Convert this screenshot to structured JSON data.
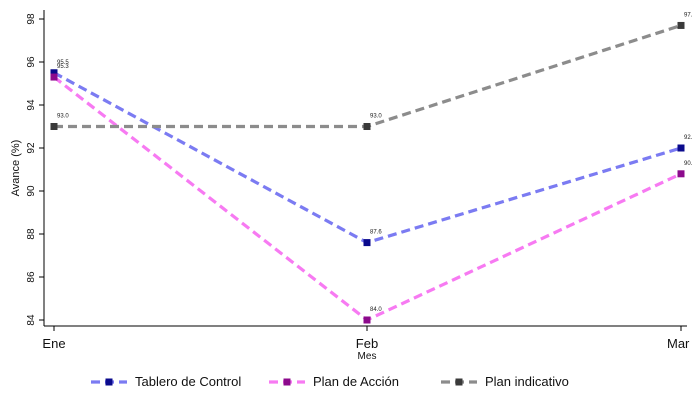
{
  "chart_data": {
    "type": "line",
    "title": "",
    "xlabel": "Mes",
    "ylabel": "Avance (%)",
    "categories": [
      "Ene",
      "Feb",
      "Mar"
    ],
    "ylim": [
      83.5,
      99
    ],
    "yticks": [
      84,
      86,
      88,
      90,
      92,
      94,
      96,
      98
    ],
    "grid": false,
    "legend": "bottom",
    "series": [
      {
        "name": "Tablero de Control",
        "values": [
          95.5,
          87.6,
          92.0
        ],
        "labels": [
          "95.5",
          "87.6",
          "92.0"
        ],
        "color": "#7b7bf2",
        "marker_color": "#0a0a8c"
      },
      {
        "name": "Plan de Acción",
        "values": [
          95.3,
          84.0,
          90.8
        ],
        "labels": [
          "95.3",
          "84.0",
          "90.8"
        ],
        "color": "#f77af2",
        "marker_color": "#8c0a8c"
      },
      {
        "name": "Plan indicativo",
        "values": [
          93.0,
          93.0,
          97.7
        ],
        "labels": [
          "93.0",
          "93.0",
          "97.7"
        ],
        "color": "#8c8c8c",
        "marker_color": "#3a3a3a"
      }
    ]
  }
}
